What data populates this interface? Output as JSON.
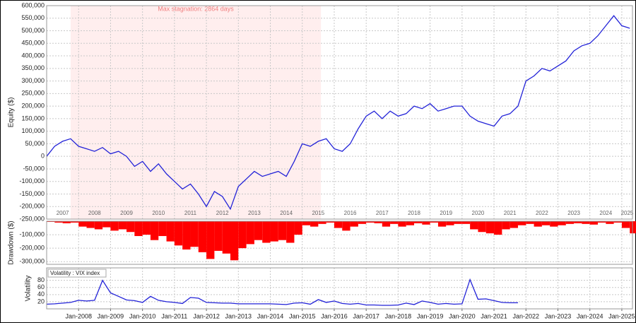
{
  "chart_data": [
    {
      "type": "line",
      "y_label": "Equity ($)",
      "annotation": "Max stagnation: 2864 days",
      "stagnation_x": [
        "2007-10",
        "2015-08"
      ],
      "color": "#2323d8",
      "xlim": [
        "2007-01",
        "2025-05"
      ],
      "ylim": [
        -250000,
        600000
      ],
      "yticks": [
        {
          "value": -250000,
          "label": "-250,000"
        },
        {
          "value": -200000,
          "label": "-200,000"
        },
        {
          "value": -150000,
          "label": "-150,000"
        },
        {
          "value": -100000,
          "label": "-100,000"
        },
        {
          "value": -50000,
          "label": "-50,000"
        },
        0,
        {
          "value": 50000,
          "label": "50,000"
        },
        {
          "value": 100000,
          "label": "100,000"
        },
        {
          "value": 150000,
          "label": "150,000"
        },
        {
          "value": 200000,
          "label": "200,000"
        },
        {
          "value": 250000,
          "label": "250,000"
        },
        {
          "value": 300000,
          "label": "300,000"
        },
        {
          "value": 350000,
          "label": "350,000"
        },
        {
          "value": 400000,
          "label": "400,000"
        },
        {
          "value": 450000,
          "label": "450,000"
        },
        {
          "value": 500000,
          "label": "500,000"
        },
        {
          "value": 550000,
          "label": "550,000"
        },
        {
          "value": 600000,
          "label": "600,000"
        }
      ],
      "xticks": [
        {
          "value": "2007-07",
          "label": "2007"
        },
        {
          "value": "2008-07",
          "label": "2008"
        },
        {
          "value": "2009-07",
          "label": "2009"
        },
        {
          "value": "2010-07",
          "label": "2010"
        },
        {
          "value": "2011-07",
          "label": "2011"
        },
        {
          "value": "2012-07",
          "label": "2012"
        },
        {
          "value": "2013-07",
          "label": "2013"
        },
        {
          "value": "2014-07",
          "label": "2014"
        },
        {
          "value": "2015-07",
          "label": "2015"
        },
        {
          "value": "2016-07",
          "label": "2016"
        },
        {
          "value": "2017-07",
          "label": "2017"
        },
        {
          "value": "2018-07",
          "label": "2018"
        },
        {
          "value": "2019-07",
          "label": "2019"
        },
        {
          "value": "2020-07",
          "label": "2020"
        },
        {
          "value": "2021-07",
          "label": "2021"
        },
        {
          "value": "2022-07",
          "label": "2022"
        },
        {
          "value": "2023-07",
          "label": "2023"
        },
        {
          "value": "2024-07",
          "label": "2024"
        },
        {
          "value": "2025-03",
          "label": "2025"
        }
      ],
      "x": [
        "2007-01",
        "2007-04",
        "2007-07",
        "2007-10",
        "2008-01",
        "2008-04",
        "2008-07",
        "2008-10",
        "2009-01",
        "2009-04",
        "2009-07",
        "2009-10",
        "2010-01",
        "2010-04",
        "2010-07",
        "2010-10",
        "2011-01",
        "2011-04",
        "2011-07",
        "2011-10",
        "2012-01",
        "2012-04",
        "2012-07",
        "2012-10",
        "2013-01",
        "2013-04",
        "2013-07",
        "2013-10",
        "2014-01",
        "2014-04",
        "2014-07",
        "2014-10",
        "2015-01",
        "2015-04",
        "2015-07",
        "2015-10",
        "2016-01",
        "2016-04",
        "2016-07",
        "2016-10",
        "2017-01",
        "2017-04",
        "2017-07",
        "2017-10",
        "2018-01",
        "2018-04",
        "2018-07",
        "2018-10",
        "2019-01",
        "2019-04",
        "2019-07",
        "2019-10",
        "2020-01",
        "2020-04",
        "2020-07",
        "2020-10",
        "2021-01",
        "2021-04",
        "2021-07",
        "2021-10",
        "2022-01",
        "2022-04",
        "2022-07",
        "2022-10",
        "2023-01",
        "2023-04",
        "2023-07",
        "2023-10",
        "2024-01",
        "2024-04",
        "2024-07",
        "2024-10",
        "2025-01",
        "2025-04"
      ],
      "values": [
        0,
        40000,
        60000,
        70000,
        40000,
        30000,
        20000,
        35000,
        10000,
        20000,
        0,
        -40000,
        -20000,
        -60000,
        -30000,
        -70000,
        -100000,
        -130000,
        -110000,
        -150000,
        -200000,
        -140000,
        -160000,
        -210000,
        -120000,
        -90000,
        -60000,
        -80000,
        -70000,
        -60000,
        -80000,
        -20000,
        50000,
        40000,
        60000,
        70000,
        30000,
        20000,
        50000,
        110000,
        160000,
        180000,
        150000,
        180000,
        160000,
        170000,
        200000,
        190000,
        210000,
        180000,
        190000,
        200000,
        200000,
        160000,
        140000,
        130000,
        120000,
        160000,
        170000,
        200000,
        300000,
        320000,
        350000,
        340000,
        360000,
        380000,
        420000,
        440000,
        450000,
        480000,
        520000,
        560000,
        520000,
        510000
      ]
    },
    {
      "type": "bar",
      "y_label": "Drawdown ($)",
      "color": "#ff0000",
      "xlim": [
        "2007-01",
        "2025-05"
      ],
      "ylim": [
        -320000,
        0
      ],
      "yticks": [
        {
          "value": -300000,
          "label": "-300,000"
        },
        {
          "value": -200000,
          "label": "-200,000"
        },
        {
          "value": -100000,
          "label": "-100,000"
        }
      ],
      "x": [
        "2007-01",
        "2007-04",
        "2007-07",
        "2007-10",
        "2008-01",
        "2008-04",
        "2008-07",
        "2008-10",
        "2009-01",
        "2009-04",
        "2009-07",
        "2009-10",
        "2010-01",
        "2010-04",
        "2010-07",
        "2010-10",
        "2011-01",
        "2011-04",
        "2011-07",
        "2011-10",
        "2012-01",
        "2012-04",
        "2012-07",
        "2012-10",
        "2013-01",
        "2013-04",
        "2013-07",
        "2013-10",
        "2014-01",
        "2014-04",
        "2014-07",
        "2014-10",
        "2015-01",
        "2015-04",
        "2015-07",
        "2015-10",
        "2016-01",
        "2016-04",
        "2016-07",
        "2016-10",
        "2017-01",
        "2017-04",
        "2017-07",
        "2017-10",
        "2018-01",
        "2018-04",
        "2018-07",
        "2018-10",
        "2019-01",
        "2019-04",
        "2019-07",
        "2019-10",
        "2020-01",
        "2020-04",
        "2020-07",
        "2020-10",
        "2021-01",
        "2021-04",
        "2021-07",
        "2021-10",
        "2022-01",
        "2022-04",
        "2022-07",
        "2022-10",
        "2023-01",
        "2023-04",
        "2023-07",
        "2023-10",
        "2024-01",
        "2024-04",
        "2024-07",
        "2024-10",
        "2025-01",
        "2025-04"
      ],
      "values": [
        -5000,
        -10000,
        -15000,
        -10000,
        -40000,
        -50000,
        -60000,
        -45000,
        -70000,
        -60000,
        -80000,
        -110000,
        -100000,
        -140000,
        -110000,
        -150000,
        -180000,
        -210000,
        -190000,
        -230000,
        -280000,
        -220000,
        -240000,
        -290000,
        -200000,
        -170000,
        -140000,
        -160000,
        -150000,
        -140000,
        -160000,
        -100000,
        -30000,
        -40000,
        -20000,
        -10000,
        -50000,
        -70000,
        -40000,
        -20000,
        -10000,
        -15000,
        -40000,
        -20000,
        -40000,
        -30000,
        -15000,
        -25000,
        -10000,
        -40000,
        -30000,
        -20000,
        -20000,
        -60000,
        -80000,
        -90000,
        -100000,
        -60000,
        -50000,
        -30000,
        -20000,
        -40000,
        -30000,
        -40000,
        -30000,
        -20000,
        -15000,
        -20000,
        -25000,
        -10000,
        -20000,
        -10000,
        -50000,
        -90000
      ]
    },
    {
      "type": "line",
      "y_label": "Volatility",
      "legend": "Volatility : VIX index",
      "color": "#2323d8",
      "xlim": [
        "2007-01",
        "2025-05"
      ],
      "ylim": [
        0,
        115
      ],
      "yticks": [
        20,
        40,
        60,
        80
      ],
      "xticks": [
        {
          "value": "2008-01",
          "label": "Jan-2008"
        },
        {
          "value": "2009-01",
          "label": "Jan-2009"
        },
        {
          "value": "2010-01",
          "label": "Jan-2010"
        },
        {
          "value": "2011-01",
          "label": "Jan-2011"
        },
        {
          "value": "2012-01",
          "label": "Jan-2012"
        },
        {
          "value": "2013-01",
          "label": "Jan-2013"
        },
        {
          "value": "2014-01",
          "label": "Jan-2014"
        },
        {
          "value": "2015-01",
          "label": "Jan-2015"
        },
        {
          "value": "2016-01",
          "label": "Jan-2016"
        },
        {
          "value": "2017-01",
          "label": "Jan-2017"
        },
        {
          "value": "2018-01",
          "label": "Jan-2018"
        },
        {
          "value": "2019-01",
          "label": "Jan-2019"
        },
        {
          "value": "2020-01",
          "label": "Jan-2020"
        },
        {
          "value": "2021-01",
          "label": "Jan-2021"
        },
        {
          "value": "2022-01",
          "label": "Jan-2022"
        },
        {
          "value": "2023-01",
          "label": "Jan-2023"
        },
        {
          "value": "2024-01",
          "label": "Jan-2024"
        },
        {
          "value": "2025-01",
          "label": "Jan-2025"
        }
      ],
      "x": [
        "2007-01",
        "2007-04",
        "2007-07",
        "2007-10",
        "2008-01",
        "2008-04",
        "2008-07",
        "2008-10",
        "2009-01",
        "2009-04",
        "2009-07",
        "2009-10",
        "2010-01",
        "2010-04",
        "2010-07",
        "2010-10",
        "2011-01",
        "2011-04",
        "2011-07",
        "2011-10",
        "2012-01",
        "2012-04",
        "2012-07",
        "2012-10",
        "2013-01",
        "2013-04",
        "2013-07",
        "2013-10",
        "2014-01",
        "2014-04",
        "2014-07",
        "2014-10",
        "2015-01",
        "2015-04",
        "2015-07",
        "2015-10",
        "2016-01",
        "2016-04",
        "2016-07",
        "2016-10",
        "2017-01",
        "2017-04",
        "2017-07",
        "2017-10",
        "2018-01",
        "2018-04",
        "2018-07",
        "2018-10",
        "2019-01",
        "2019-04",
        "2019-07",
        "2019-10",
        "2020-01",
        "2020-04",
        "2020-07",
        "2020-10",
        "2021-01",
        "2021-04",
        "2021-07",
        "2021-10"
      ],
      "values": [
        13,
        14,
        16,
        18,
        24,
        22,
        24,
        80,
        45,
        35,
        25,
        23,
        18,
        35,
        24,
        20,
        18,
        15,
        32,
        30,
        18,
        17,
        16,
        16,
        14,
        14,
        14,
        14,
        14,
        13,
        12,
        16,
        17,
        13,
        26,
        18,
        22,
        15,
        13,
        15,
        11,
        11,
        10,
        10,
        11,
        16,
        12,
        22,
        18,
        13,
        15,
        13,
        14,
        82,
        27,
        28,
        23,
        18,
        17,
        17
      ]
    }
  ]
}
